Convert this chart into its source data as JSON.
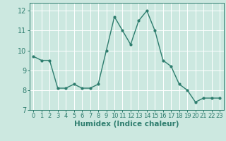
{
  "x": [
    0,
    1,
    2,
    3,
    4,
    5,
    6,
    7,
    8,
    9,
    10,
    11,
    12,
    13,
    14,
    15,
    16,
    17,
    18,
    19,
    20,
    21,
    22,
    23
  ],
  "y": [
    9.7,
    9.5,
    9.5,
    8.1,
    8.1,
    8.3,
    8.1,
    8.1,
    8.3,
    10.0,
    11.7,
    11.0,
    10.3,
    11.5,
    12.0,
    11.0,
    9.5,
    9.2,
    8.3,
    8.0,
    7.4,
    7.6,
    7.6,
    7.6
  ],
  "line_color": "#2e7d6e",
  "marker": "o",
  "marker_size": 2.0,
  "line_width": 1.0,
  "xlabel": "Humidex (Indice chaleur)",
  "xlim": [
    -0.5,
    23.5
  ],
  "ylim": [
    7,
    12.4
  ],
  "yticks": [
    7,
    8,
    9,
    10,
    11,
    12
  ],
  "xticks": [
    0,
    1,
    2,
    3,
    4,
    5,
    6,
    7,
    8,
    9,
    10,
    11,
    12,
    13,
    14,
    15,
    16,
    17,
    18,
    19,
    20,
    21,
    22,
    23
  ],
  "bg_color": "#cce8e0",
  "grid_color": "#ffffff",
  "tick_color": "#2e7d6e",
  "label_color": "#2e7d6e",
  "font_size_xlabel": 7.5,
  "font_size_ytick": 7,
  "font_size_xtick": 6
}
